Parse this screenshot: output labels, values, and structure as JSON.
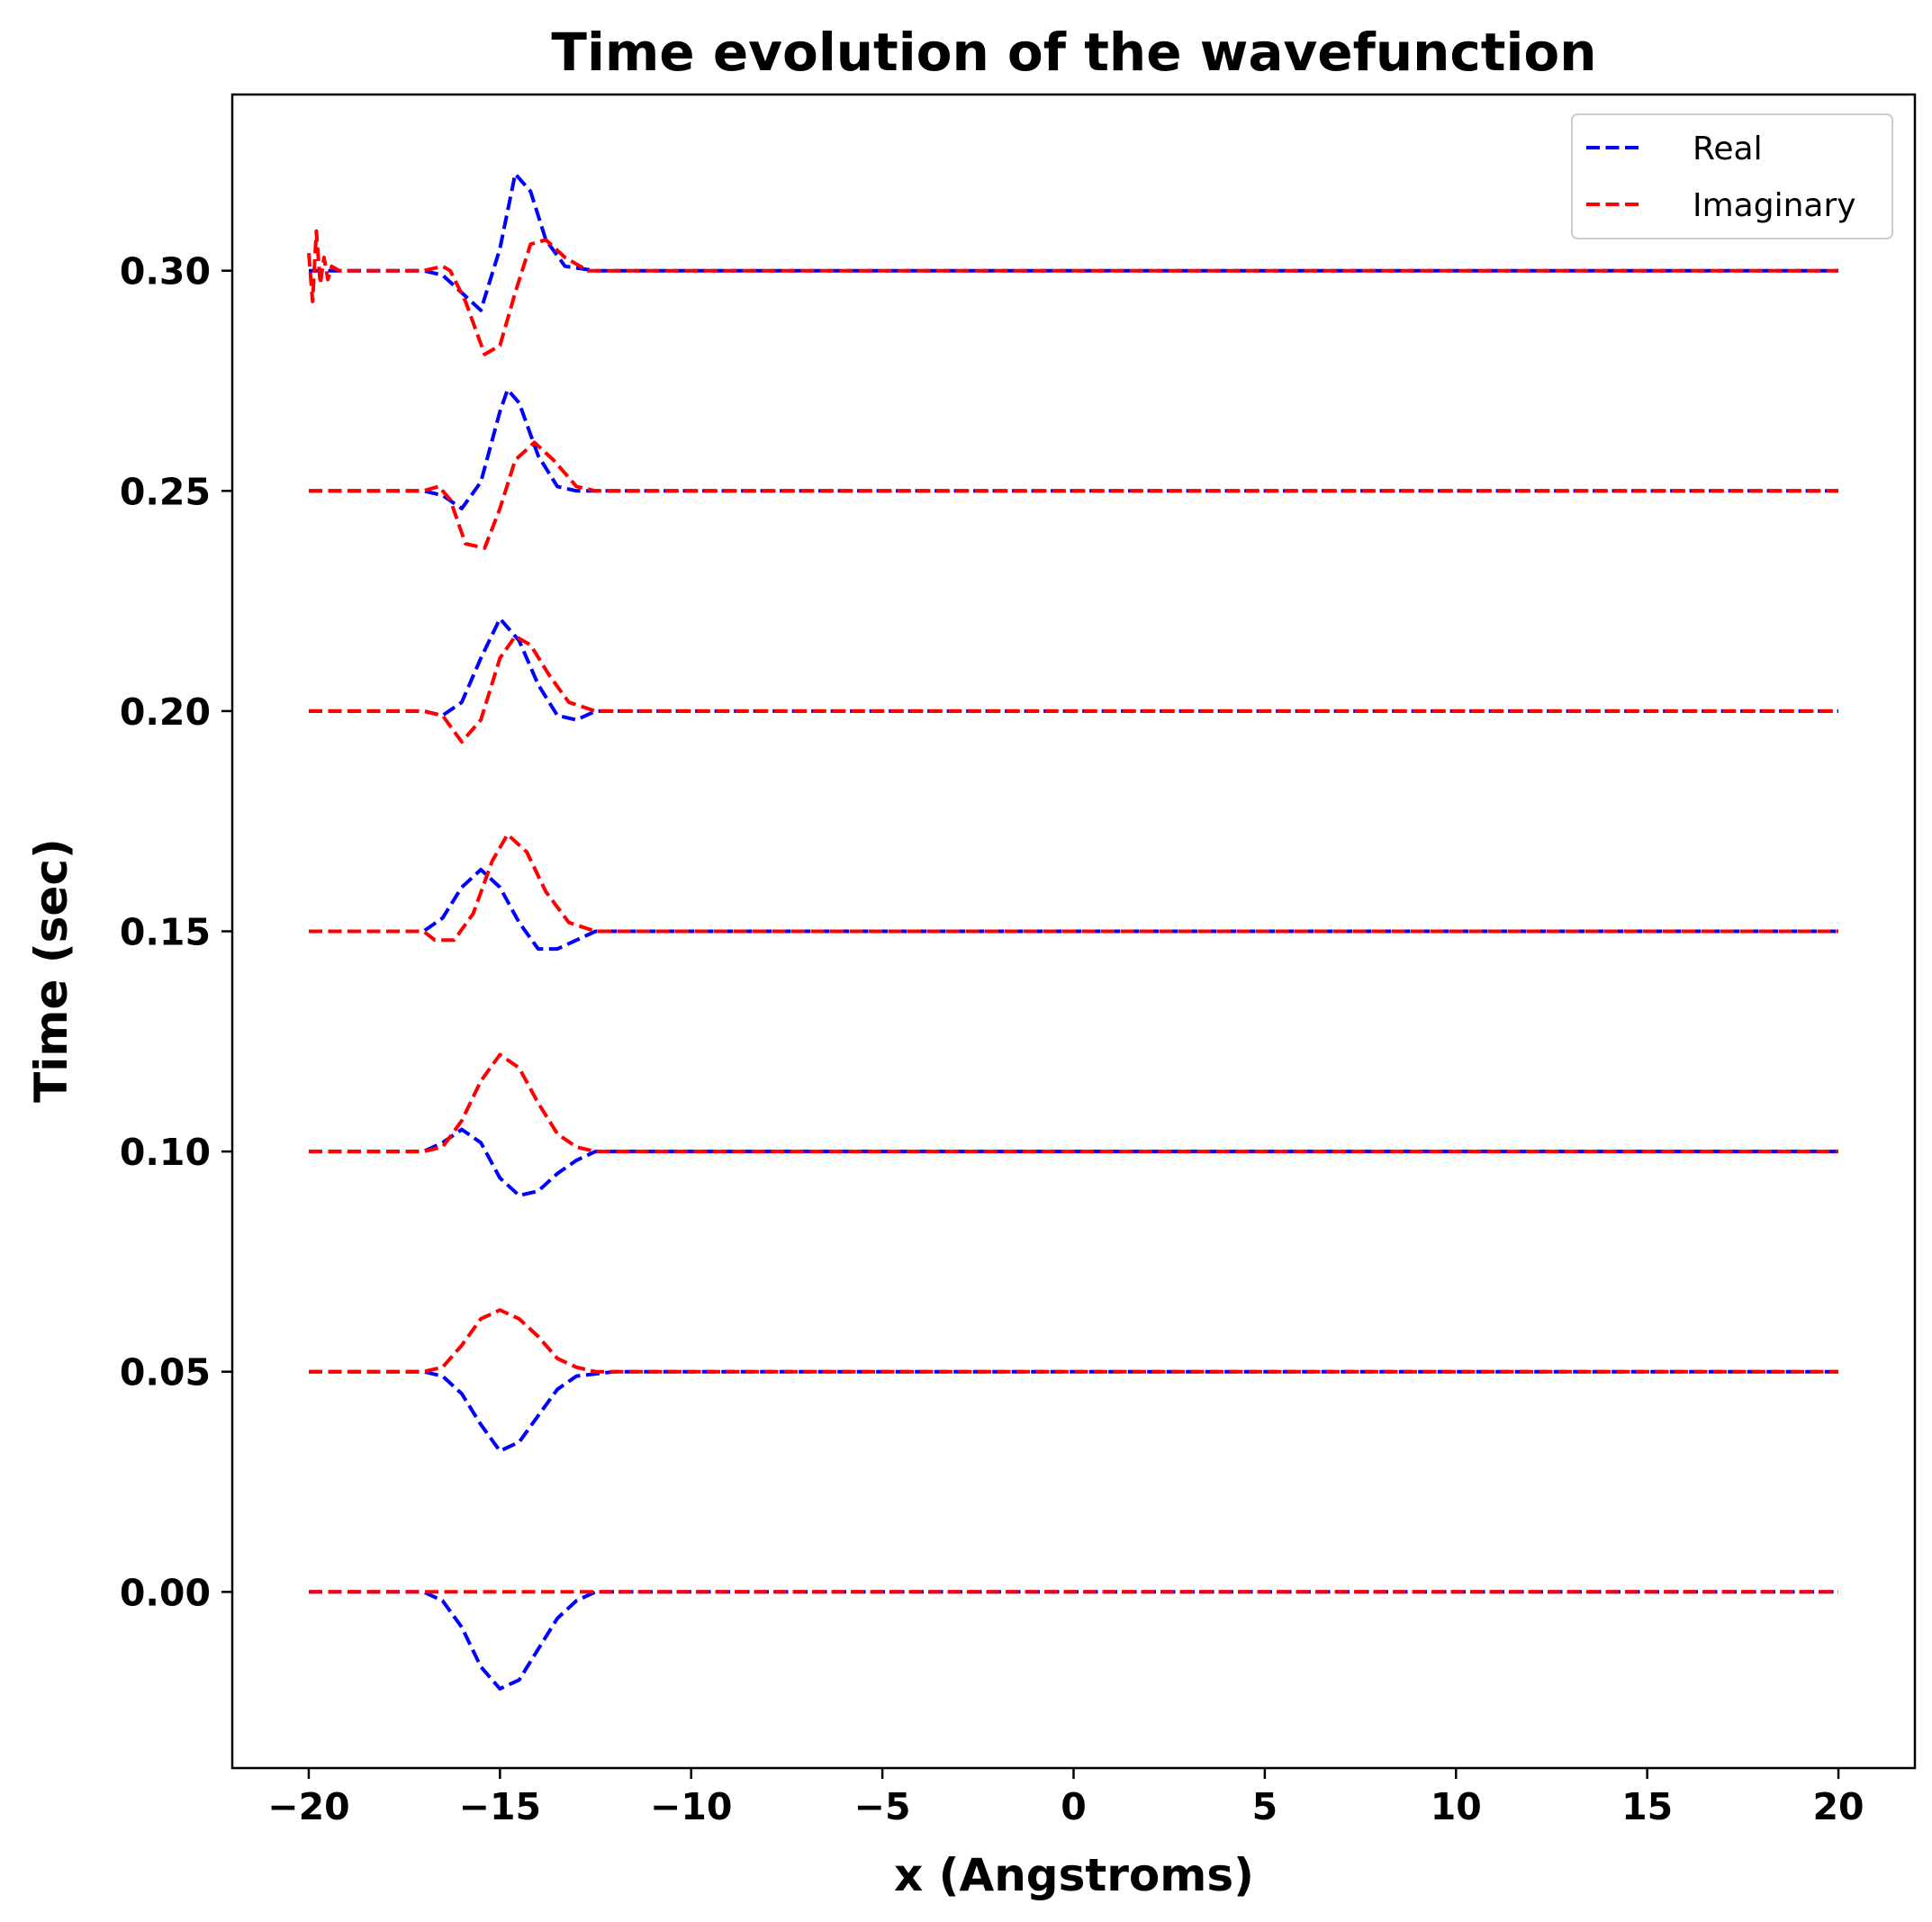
{
  "chart_data": {
    "type": "line",
    "title": "Time evolution of the wavefunction",
    "xlabel": "x (Angstroms)",
    "ylabel": "Time (sec)",
    "xlim": [
      -22,
      22
    ],
    "ylim": [
      -0.04,
      0.34
    ],
    "xticks": [
      -20,
      -15,
      -10,
      -5,
      0,
      5,
      10,
      15,
      20
    ],
    "xtick_labels": [
      "−20",
      "−15",
      "−10",
      "−5",
      "0",
      "5",
      "10",
      "15",
      "20"
    ],
    "yticks": [
      0.0,
      0.05,
      0.1,
      0.15,
      0.2,
      0.25,
      0.3
    ],
    "ytick_labels": [
      "0.00",
      "0.05",
      "0.10",
      "0.15",
      "0.20",
      "0.25",
      "0.30"
    ],
    "legend": {
      "placement": "top-right",
      "entries": [
        {
          "label": "Real",
          "color": "#0000ff"
        },
        {
          "label": "Imaginary",
          "color": "#ff0000"
        }
      ]
    },
    "line_style": "dashed",
    "x_range": [
      -20,
      20
    ],
    "offsets": [
      0.0,
      0.05,
      0.1,
      0.15,
      0.2,
      0.25,
      0.3
    ],
    "series": [
      {
        "name": "Real",
        "color": "#0000ff",
        "curves": [
          [
            [
              -17,
              0.0
            ],
            [
              -16.5,
              -0.002
            ],
            [
              -16,
              -0.008
            ],
            [
              -15.5,
              -0.017
            ],
            [
              -15,
              -0.022
            ],
            [
              -14.5,
              -0.02
            ],
            [
              -14,
              -0.013
            ],
            [
              -13.5,
              -0.006
            ],
            [
              -13,
              -0.002
            ],
            [
              -12.5,
              0.0
            ],
            [
              -12,
              0.0
            ]
          ],
          [
            [
              -17,
              0.05
            ],
            [
              -16.5,
              0.049
            ],
            [
              -16,
              0.045
            ],
            [
              -15.5,
              0.038
            ],
            [
              -15,
              0.032
            ],
            [
              -14.5,
              0.034
            ],
            [
              -14,
              0.04
            ],
            [
              -13.5,
              0.046
            ],
            [
              -13,
              0.049
            ],
            [
              -12,
              0.05
            ]
          ],
          [
            [
              -17,
              0.1
            ],
            [
              -16.5,
              0.102
            ],
            [
              -16,
              0.105
            ],
            [
              -15.5,
              0.102
            ],
            [
              -15,
              0.094
            ],
            [
              -14.5,
              0.09
            ],
            [
              -14,
              0.091
            ],
            [
              -13.5,
              0.095
            ],
            [
              -13,
              0.098
            ],
            [
              -12.5,
              0.1
            ],
            [
              -12,
              0.1
            ]
          ],
          [
            [
              -17,
              0.15
            ],
            [
              -16.5,
              0.153
            ],
            [
              -16,
              0.16
            ],
            [
              -15.5,
              0.164
            ],
            [
              -15,
              0.16
            ],
            [
              -14.5,
              0.152
            ],
            [
              -14,
              0.146
            ],
            [
              -13.5,
              0.146
            ],
            [
              -13,
              0.148
            ],
            [
              -12.5,
              0.15
            ],
            [
              -12,
              0.15
            ]
          ],
          [
            [
              -17,
              0.2
            ],
            [
              -16.5,
              0.199
            ],
            [
              -16,
              0.202
            ],
            [
              -15.5,
              0.212
            ],
            [
              -15,
              0.221
            ],
            [
              -14.5,
              0.216
            ],
            [
              -14,
              0.206
            ],
            [
              -13.5,
              0.199
            ],
            [
              -13,
              0.198
            ],
            [
              -12.5,
              0.2
            ],
            [
              -12,
              0.2
            ]
          ],
          [
            [
              -17,
              0.25
            ],
            [
              -16.5,
              0.249
            ],
            [
              -16,
              0.246
            ],
            [
              -15.5,
              0.252
            ],
            [
              -15,
              0.268
            ],
            [
              -14.8,
              0.273
            ],
            [
              -14.5,
              0.27
            ],
            [
              -14,
              0.258
            ],
            [
              -13.5,
              0.251
            ],
            [
              -13,
              0.25
            ],
            [
              -12,
              0.25
            ]
          ],
          [
            [
              -20,
              0.3
            ],
            [
              -19.5,
              0.3
            ],
            [
              -17,
              0.3
            ],
            [
              -16.5,
              0.299
            ],
            [
              -16,
              0.295
            ],
            [
              -15.5,
              0.291
            ],
            [
              -15,
              0.305
            ],
            [
              -14.6,
              0.322
            ],
            [
              -14.2,
              0.318
            ],
            [
              -13.8,
              0.307
            ],
            [
              -13.3,
              0.301
            ],
            [
              -12.5,
              0.3
            ],
            [
              -12,
              0.3
            ]
          ]
        ]
      },
      {
        "name": "Imaginary",
        "color": "#ff0000",
        "curves": [
          [
            [
              -20,
              0.0
            ],
            [
              20,
              0.0
            ]
          ],
          [
            [
              -20,
              0.05
            ],
            [
              -17,
              0.05
            ],
            [
              -16.5,
              0.051
            ],
            [
              -16,
              0.056
            ],
            [
              -15.5,
              0.062
            ],
            [
              -15,
              0.064
            ],
            [
              -14.5,
              0.062
            ],
            [
              -14,
              0.058
            ],
            [
              -13.5,
              0.053
            ],
            [
              -13,
              0.051
            ],
            [
              -12.5,
              0.05
            ],
            [
              -12,
              0.05
            ]
          ],
          [
            [
              -20,
              0.1
            ],
            [
              -17,
              0.1
            ],
            [
              -16.5,
              0.101
            ],
            [
              -16,
              0.107
            ],
            [
              -15.5,
              0.116
            ],
            [
              -15,
              0.122
            ],
            [
              -14.5,
              0.119
            ],
            [
              -14,
              0.111
            ],
            [
              -13.5,
              0.104
            ],
            [
              -13,
              0.101
            ],
            [
              -12.5,
              0.1
            ],
            [
              -12,
              0.1
            ]
          ],
          [
            [
              -20,
              0.15
            ],
            [
              -17,
              0.15
            ],
            [
              -16.7,
              0.148
            ],
            [
              -16.2,
              0.148
            ],
            [
              -15.7,
              0.154
            ],
            [
              -15.2,
              0.166
            ],
            [
              -14.8,
              0.172
            ],
            [
              -14.3,
              0.168
            ],
            [
              -13.8,
              0.159
            ],
            [
              -13.2,
              0.152
            ],
            [
              -12.5,
              0.15
            ],
            [
              -12,
              0.15
            ]
          ],
          [
            [
              -20,
              0.2
            ],
            [
              -17,
              0.2
            ],
            [
              -16.5,
              0.199
            ],
            [
              -16,
              0.193
            ],
            [
              -15.5,
              0.198
            ],
            [
              -15,
              0.212
            ],
            [
              -14.6,
              0.217
            ],
            [
              -14.2,
              0.215
            ],
            [
              -13.7,
              0.208
            ],
            [
              -13.2,
              0.202
            ],
            [
              -12.5,
              0.2
            ],
            [
              -12,
              0.2
            ]
          ],
          [
            [
              -20,
              0.25
            ],
            [
              -17,
              0.25
            ],
            [
              -16.6,
              0.251
            ],
            [
              -16.3,
              0.248
            ],
            [
              -15.9,
              0.238
            ],
            [
              -15.4,
              0.237
            ],
            [
              -15,
              0.246
            ],
            [
              -14.6,
              0.257
            ],
            [
              -14.1,
              0.261
            ],
            [
              -13.6,
              0.257
            ],
            [
              -13,
              0.251
            ],
            [
              -12.5,
              0.25
            ],
            [
              -12,
              0.25
            ]
          ],
          [
            [
              -20,
              0.304
            ],
            [
              -19.9,
              0.293
            ],
            [
              -19.8,
              0.309
            ],
            [
              -19.7,
              0.297
            ],
            [
              -19.6,
              0.303
            ],
            [
              -19.5,
              0.298
            ],
            [
              -19.4,
              0.301
            ],
            [
              -19.2,
              0.3
            ],
            [
              -17,
              0.3
            ],
            [
              -16.5,
              0.301
            ],
            [
              -16.3,
              0.3
            ],
            [
              -15.9,
              0.293
            ],
            [
              -15.4,
              0.281
            ],
            [
              -15,
              0.283
            ],
            [
              -14.6,
              0.295
            ],
            [
              -14.2,
              0.306
            ],
            [
              -13.8,
              0.307
            ],
            [
              -13.3,
              0.303
            ],
            [
              -12.7,
              0.3
            ],
            [
              -12,
              0.3
            ]
          ]
        ]
      }
    ]
  }
}
